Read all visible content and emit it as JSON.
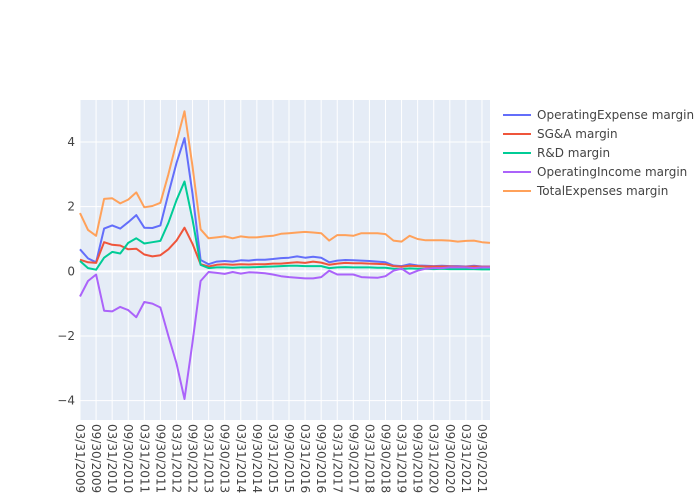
{
  "chart_data": {
    "type": "line",
    "title": "",
    "xlabel": "",
    "ylabel": "",
    "legend_position": "right",
    "grid": true,
    "ylim": [
      -4.6,
      5.3
    ],
    "y_ticks": [
      -4,
      -2,
      0,
      2,
      4
    ],
    "x_tick_labels": [
      "03/31/2009",
      "09/30/2009",
      "03/31/2010",
      "09/30/2010",
      "03/31/2011",
      "09/30/2011",
      "03/31/2012",
      "09/30/2012",
      "03/31/2013",
      "09/30/2013",
      "03/31/2014",
      "09/30/2014",
      "03/31/2015",
      "09/30/2015",
      "03/31/2016",
      "09/30/2016",
      "03/31/2017",
      "09/30/2017",
      "03/31/2018",
      "09/30/2018",
      "03/31/2019",
      "09/30/2019",
      "03/31/2020",
      "09/30/2020",
      "03/31/2021",
      "09/30/2021"
    ],
    "x": [
      "03/31/2009",
      "06/30/2009",
      "09/30/2009",
      "12/31/2009",
      "03/31/2010",
      "06/30/2010",
      "09/30/2010",
      "12/31/2010",
      "03/31/2011",
      "06/30/2011",
      "09/30/2011",
      "12/31/2011",
      "03/31/2012",
      "06/30/2012",
      "09/30/2012",
      "12/31/2012",
      "03/31/2013",
      "06/30/2013",
      "09/30/2013",
      "12/31/2013",
      "03/31/2014",
      "06/30/2014",
      "09/30/2014",
      "12/31/2014",
      "03/31/2015",
      "06/30/2015",
      "09/30/2015",
      "12/31/2015",
      "03/31/2016",
      "06/30/2016",
      "09/30/2016",
      "12/31/2016",
      "03/31/2017",
      "06/30/2017",
      "09/30/2017",
      "12/31/2017",
      "03/31/2018",
      "06/30/2018",
      "09/30/2018",
      "12/31/2018",
      "03/31/2019",
      "06/30/2019",
      "09/30/2019",
      "12/31/2019",
      "03/31/2020",
      "06/30/2020",
      "09/30/2020",
      "12/31/2020",
      "03/31/2021",
      "06/30/2021",
      "09/30/2021",
      "12/31/2021"
    ],
    "series": [
      {
        "name": "OperatingExpense margin",
        "color": "#636efa",
        "values": [
          0.68,
          0.4,
          0.28,
          1.32,
          1.42,
          1.32,
          1.52,
          1.74,
          1.35,
          1.34,
          1.42,
          2.4,
          3.35,
          4.12,
          2.4,
          0.35,
          0.22,
          0.3,
          0.32,
          0.3,
          0.34,
          0.33,
          0.36,
          0.36,
          0.38,
          0.41,
          0.42,
          0.46,
          0.42,
          0.45,
          0.42,
          0.28,
          0.33,
          0.35,
          0.34,
          0.33,
          0.32,
          0.3,
          0.28,
          0.18,
          0.16,
          0.22,
          0.18,
          0.17,
          0.16,
          0.17,
          0.16,
          0.16,
          0.15,
          0.17,
          0.15,
          0.15
        ]
      },
      {
        "name": "SG&A margin",
        "color": "#ef553b",
        "values": [
          0.36,
          0.28,
          0.26,
          0.9,
          0.82,
          0.8,
          0.68,
          0.7,
          0.52,
          0.46,
          0.5,
          0.68,
          0.95,
          1.35,
          0.85,
          0.22,
          0.15,
          0.2,
          0.22,
          0.2,
          0.22,
          0.21,
          0.22,
          0.22,
          0.24,
          0.24,
          0.26,
          0.28,
          0.26,
          0.3,
          0.27,
          0.2,
          0.24,
          0.26,
          0.25,
          0.25,
          0.24,
          0.23,
          0.22,
          0.16,
          0.14,
          0.17,
          0.16,
          0.15,
          0.15,
          0.15,
          0.15,
          0.14,
          0.14,
          0.15,
          0.14,
          0.14
        ]
      },
      {
        "name": "R&D margin",
        "color": "#00cc96",
        "values": [
          0.32,
          0.1,
          0.05,
          0.42,
          0.6,
          0.55,
          0.88,
          1.02,
          0.86,
          0.9,
          0.94,
          1.5,
          2.2,
          2.78,
          1.6,
          0.2,
          0.1,
          0.12,
          0.12,
          0.11,
          0.12,
          0.12,
          0.13,
          0.14,
          0.15,
          0.16,
          0.17,
          0.17,
          0.16,
          0.16,
          0.16,
          0.1,
          0.12,
          0.13,
          0.12,
          0.12,
          0.12,
          0.11,
          0.11,
          0.08,
          0.07,
          0.09,
          0.08,
          0.08,
          0.07,
          0.08,
          0.07,
          0.07,
          0.07,
          0.07,
          0.06,
          0.06
        ]
      },
      {
        "name": "OperatingIncome margin",
        "color": "#ab63fa",
        "values": [
          -0.78,
          -0.3,
          -0.1,
          -1.22,
          -1.24,
          -1.1,
          -1.2,
          -1.42,
          -0.95,
          -1.0,
          -1.12,
          -2.0,
          -2.85,
          -3.95,
          -2.2,
          -0.3,
          -0.02,
          -0.05,
          -0.08,
          -0.02,
          -0.07,
          -0.03,
          -0.04,
          -0.06,
          -0.1,
          -0.15,
          -0.18,
          -0.2,
          -0.22,
          -0.22,
          -0.18,
          0.02,
          -0.1,
          -0.1,
          -0.1,
          -0.18,
          -0.19,
          -0.2,
          -0.15,
          0.02,
          0.08,
          -0.08,
          0.02,
          0.08,
          0.1,
          0.1,
          0.12,
          0.12,
          0.12,
          0.1,
          0.12,
          0.12
        ]
      },
      {
        "name": "TotalExpenses margin",
        "color": "#ffa15a",
        "values": [
          1.8,
          1.28,
          1.1,
          2.24,
          2.26,
          2.1,
          2.22,
          2.44,
          1.98,
          2.02,
          2.12,
          3.0,
          4.0,
          4.95,
          3.25,
          1.3,
          1.02,
          1.05,
          1.08,
          1.02,
          1.08,
          1.05,
          1.05,
          1.08,
          1.1,
          1.16,
          1.18,
          1.2,
          1.22,
          1.2,
          1.18,
          0.95,
          1.12,
          1.12,
          1.1,
          1.18,
          1.18,
          1.18,
          1.15,
          0.95,
          0.92,
          1.1,
          1.0,
          0.96,
          0.96,
          0.96,
          0.95,
          0.92,
          0.94,
          0.95,
          0.9,
          0.88
        ]
      }
    ]
  }
}
